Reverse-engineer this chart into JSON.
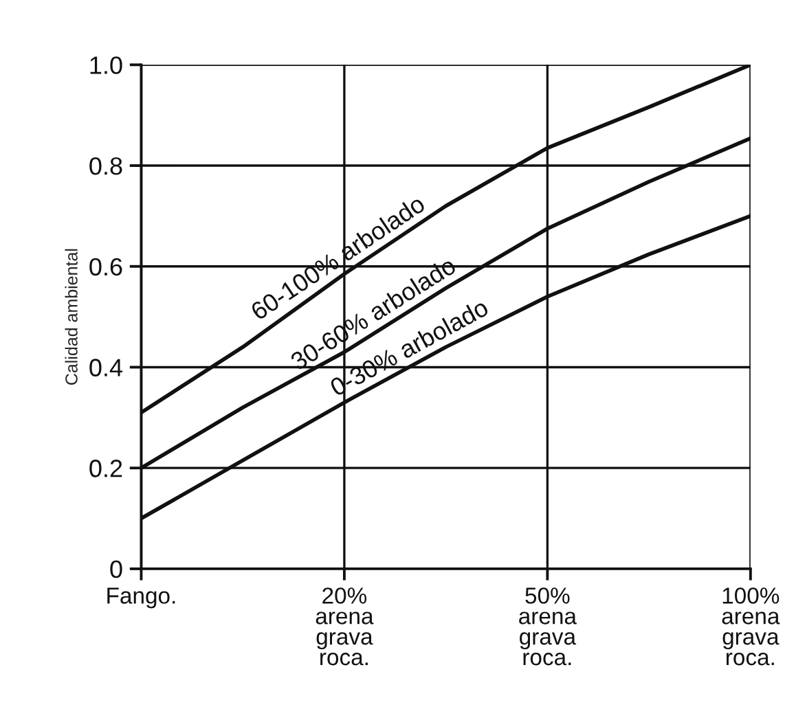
{
  "chart_data": {
    "type": "line",
    "ylabel": "Calidad ambiental",
    "categories": [
      "Fango.",
      null,
      "20%\narena\ngrava\nroca.",
      null,
      "50%\narena\ngrava\nroca.",
      null,
      "100%\narena\ngrava\nroca."
    ],
    "series": [
      {
        "color": "#111111",
        "values": [
          0.31,
          0.44,
          0.585,
          0.72,
          0.835,
          0.916,
          1.0
        ]
      },
      {
        "color": "#111111",
        "values": [
          0.2,
          0.32,
          0.43,
          0.557,
          0.675,
          0.768,
          0.854
        ]
      },
      {
        "color": "#111111",
        "values": [
          0.1,
          0.215,
          0.33,
          0.44,
          0.54,
          0.624,
          0.7
        ]
      }
    ],
    "ylim": [
      0,
      1
    ],
    "yticks": [
      0,
      0.2,
      0.4,
      0.6,
      0.8,
      {
        "value": 1,
        "label": "1.0"
      }
    ],
    "grid": true,
    "marker": "none",
    "line_style": "solid",
    "annotations": [
      "60-100% arbolado",
      "30-60% arbolado",
      "0-30% arbolado"
    ]
  }
}
